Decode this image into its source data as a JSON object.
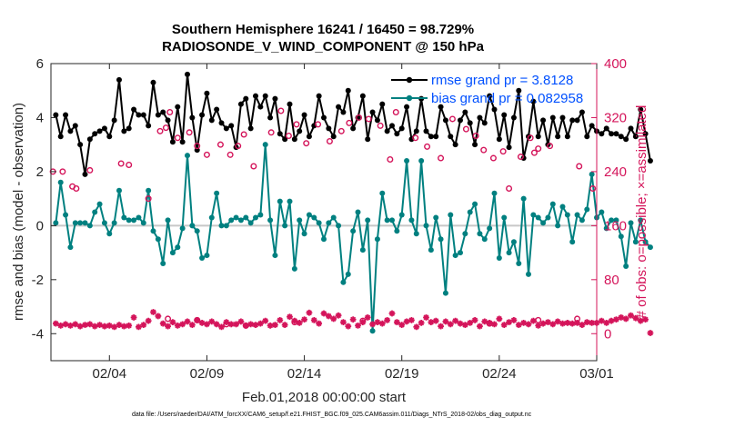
{
  "chart_data": {
    "type": "line",
    "title_line1": "Southern Hemisphere 16241 / 16450 = 98.729%",
    "title_line2": "RADIOSONDE_V_WIND_COMPONENT @ 150 hPa",
    "xlabel": "Feb.01,2018 00:00:00 start",
    "ylabel_left": "rmse and bias (model - observation)",
    "ylabel_right": "# of obs: o=possible; ×=assimilated",
    "footnote": "data file: /Users/raeder/DAI/ATM_forcXX/CAM6_setup/f.e21.FHIST_BGC.f09_025.CAM6assim.011/Diags_NTrS_2018-02/obs_diag_output.nc",
    "xlim": [
      1.0,
      29.0
    ],
    "ylim_left": [
      -5,
      6
    ],
    "ylim_right": [
      -40,
      400
    ],
    "x_ticks": [
      {
        "value": 4,
        "label": "02/04"
      },
      {
        "value": 9,
        "label": "02/09"
      },
      {
        "value": 14,
        "label": "02/14"
      },
      {
        "value": 19,
        "label": "02/19"
      },
      {
        "value": 24,
        "label": "02/24"
      },
      {
        "value": 29,
        "label": "03/01"
      }
    ],
    "y_ticks_left": [
      {
        "value": -4,
        "label": "-4"
      },
      {
        "value": -2,
        "label": "-2"
      },
      {
        "value": 0,
        "label": "0"
      },
      {
        "value": 2,
        "label": "2"
      },
      {
        "value": 4,
        "label": "4"
      },
      {
        "value": 6,
        "label": "6"
      }
    ],
    "y_ticks_right": [
      {
        "value": 0,
        "label": "0"
      },
      {
        "value": 80,
        "label": "80"
      },
      {
        "value": 160,
        "label": "160"
      },
      {
        "value": 240,
        "label": "240"
      },
      {
        "value": 320,
        "label": "320"
      },
      {
        "value": 400,
        "label": "400"
      }
    ],
    "series": [
      {
        "name": "rmse",
        "legend_label": "rmse grand pr = 3.8128",
        "color": "#000000",
        "axis": "left",
        "x_start": 1.25,
        "x_step": 0.25,
        "values": [
          4.1,
          3.3,
          4.1,
          3.5,
          3.7,
          3.0,
          1.9,
          3.2,
          3.4,
          3.5,
          3.6,
          3.3,
          3.9,
          5.4,
          3.5,
          3.6,
          4.3,
          4.1,
          4.1,
          3.7,
          5.3,
          4.1,
          4.2,
          3.9,
          3.1,
          4.4,
          3.1,
          5.6,
          4.0,
          2.8,
          4.1,
          4.9,
          3.9,
          4.3,
          3.8,
          3.6,
          3.7,
          2.9,
          4.5,
          4.7,
          3.6,
          4.8,
          4.4,
          4.8,
          4.0,
          4.7,
          3.4,
          3.2,
          4.5,
          3.2,
          3.5,
          4.1,
          3.3,
          3.7,
          4.8,
          4.0,
          3.6,
          3.3,
          4.4,
          4.2,
          5.0,
          3.6,
          4.0,
          4.8,
          3.2,
          4.2,
          3.9,
          4.5,
          3.5,
          3.7,
          3.4,
          3.6,
          4.4,
          3.2,
          3.5,
          4.7,
          3.5,
          3.3,
          3.3,
          4.4,
          3.9,
          3.3,
          3.0,
          3.9,
          4.2,
          3.8,
          3.0,
          4.0,
          3.8,
          4.8,
          4.3,
          3.2,
          4.1,
          2.9,
          4.0,
          5.0,
          2.5,
          3.3,
          4.6,
          3.3,
          3.9,
          3.0,
          4.0,
          3.3,
          4.0,
          3.3,
          3.9,
          3.9,
          4.2,
          3.3,
          3.7,
          3.5,
          3.4,
          3.6,
          3.4,
          3.4,
          3.3,
          3.2,
          3.6,
          3.3,
          4.3,
          3.4,
          2.4
        ]
      },
      {
        "name": "bias",
        "legend_label": "bias grand pr = 0.082958",
        "color": "#008080",
        "axis": "left",
        "x_start": 1.25,
        "x_step": 0.25,
        "values": [
          0.1,
          1.6,
          0.4,
          -0.8,
          0.1,
          0.1,
          0.1,
          0.0,
          0.5,
          0.8,
          0.1,
          -0.3,
          0.1,
          1.3,
          0.3,
          0.2,
          0.2,
          0.3,
          0.1,
          1.3,
          -0.2,
          -0.5,
          -1.4,
          0.2,
          -1.0,
          -0.8,
          -0.1,
          2.6,
          0.0,
          -0.2,
          -1.2,
          -1.1,
          0.3,
          1.2,
          0.0,
          0.0,
          0.2,
          0.3,
          0.2,
          0.3,
          0.1,
          0.3,
          0.4,
          3.0,
          0.2,
          -1.1,
          0.9,
          0.0,
          0.9,
          -1.6,
          0.2,
          -0.3,
          0.4,
          0.3,
          0.1,
          -0.5,
          0.1,
          0.3,
          0.0,
          -2.1,
          -1.8,
          -0.2,
          0.5,
          -0.9,
          0.2,
          -3.9,
          -0.5,
          1.2,
          0.2,
          0.2,
          -0.2,
          0.4,
          2.4,
          0.2,
          -0.3,
          2.4,
          0.0,
          -0.9,
          0.3,
          -0.5,
          -2.5,
          0.4,
          -1.1,
          -1.0,
          -0.3,
          0.5,
          0.8,
          -0.3,
          -0.5,
          -0.1,
          1.2,
          -1.2,
          0.3,
          -1.0,
          -0.6,
          -1.4,
          1.0,
          -1.8,
          0.4,
          0.3,
          0.1,
          0.3,
          0.8,
          0.0,
          0.7,
          0.4,
          -0.6,
          0.4,
          0.2,
          0.6,
          1.9,
          0.3,
          0.5,
          -0.1,
          0.2,
          0.2,
          -0.4,
          -1.5,
          0.1,
          -0.6,
          0.2,
          -0.6,
          -0.8
        ]
      },
      {
        "name": "obs_possible",
        "legend_label": "",
        "color": "#d4145a",
        "axis": "right",
        "marker": "circle",
        "x": [
          1.1,
          1.6,
          2.1,
          2.3,
          3.0,
          4.6,
          5.0,
          6.0,
          6.6,
          6.9,
          7.1,
          7.5,
          8.1,
          8.5,
          9.0,
          9.7,
          10.2,
          10.6,
          10.9,
          11.4,
          12.3,
          12.8,
          13.2,
          13.6,
          14.1,
          14.7,
          15.3,
          15.9,
          16.3,
          16.8,
          17.3,
          17.9,
          18.4,
          18.7,
          19.7,
          20.3,
          21.0,
          21.6,
          22.3,
          22.8,
          23.2,
          23.7,
          24.2,
          24.5,
          25.1,
          25.6,
          25.8,
          26.0,
          26.6,
          28.1,
          28.8,
          7.0,
          8.5,
          10.0,
          11.0,
          13.5,
          17.0,
          23.5,
          26.0,
          28.0
        ],
        "values": [
          240,
          240,
          218,
          215,
          242,
          252,
          250,
          200,
          300,
          305,
          328,
          290,
          298,
          278,
          265,
          280,
          265,
          278,
          295,
          248,
          298,
          330,
          293,
          310,
          282,
          310,
          285,
          300,
          312,
          320,
          318,
          308,
          258,
          328,
          290,
          277,
          260,
          318,
          303,
          293,
          272,
          260,
          270,
          215,
          262,
          290,
          268,
          274,
          278,
          248,
          215,
          22,
          20,
          14,
          12,
          17,
          19,
          15,
          20,
          22
        ]
      },
      {
        "name": "obs_assimilated",
        "legend_label": "",
        "color": "#d4145a",
        "axis": "right",
        "marker": "asterisk",
        "x_start": 1.25,
        "x_step": 0.25,
        "values": [
          15,
          12,
          14,
          12,
          14,
          11,
          13,
          14,
          11,
          13,
          11,
          12,
          10,
          13,
          11,
          12,
          24,
          10,
          13,
          19,
          32,
          26,
          15,
          11,
          17,
          12,
          14,
          18,
          13,
          20,
          16,
          14,
          18,
          14,
          10,
          17,
          14,
          14,
          18,
          12,
          14,
          13,
          15,
          19,
          12,
          13,
          20,
          13,
          25,
          19,
          16,
          21,
          31,
          20,
          15,
          30,
          26,
          22,
          27,
          17,
          11,
          21,
          12,
          17,
          24,
          14,
          17,
          15,
          20,
          30,
          17,
          13,
          18,
          20,
          10,
          16,
          24,
          17,
          19,
          11,
          18,
          14,
          19,
          15,
          13,
          16,
          20,
          11,
          18,
          16,
          14,
          22,
          13,
          17,
          20,
          13,
          16,
          14,
          19,
          12,
          15,
          17,
          14,
          18,
          15,
          16,
          15,
          16,
          13,
          17,
          16,
          16,
          19,
          16,
          19,
          21,
          24,
          22,
          27,
          23,
          19,
          21,
          1
        ]
      }
    ]
  }
}
